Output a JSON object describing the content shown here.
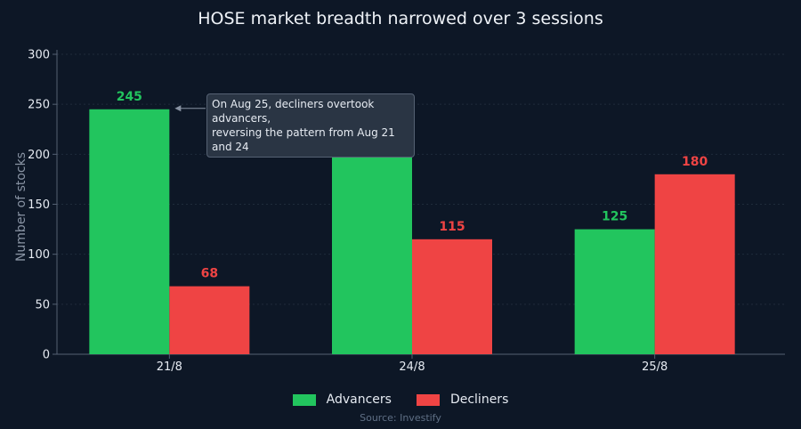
{
  "colors": {
    "background": "#0d1726",
    "advancers": "#22c55e",
    "decliners": "#ef4444",
    "grid": "#1f2b3b",
    "axis": "#556173",
    "text": "#e6ebf2",
    "muted": "#8893a3"
  },
  "chart_data": {
    "type": "bar",
    "title": "HOSE market breadth narrowed over 3 sessions",
    "xlabel": "",
    "ylabel": "Number of stocks",
    "ylim": [
      0,
      300
    ],
    "yticks": [
      0,
      50,
      100,
      150,
      200,
      250,
      300
    ],
    "categories": [
      "21/8",
      "24/8",
      "25/8"
    ],
    "series": [
      {
        "name": "Advancers",
        "values": [
          245,
          199,
          125
        ],
        "color": "#22c55e"
      },
      {
        "name": "Decliners",
        "values": [
          68,
          115,
          180
        ],
        "color": "#ef4444"
      }
    ],
    "grid": true,
    "legend_position": "bottom-center",
    "annotation": {
      "lines": [
        "On Aug 25, decliners overtook advancers,",
        "reversing the pattern from Aug 21 and 24"
      ],
      "points_to": {
        "category": "21/8",
        "series": "Advancers",
        "value": 245
      }
    },
    "source": "Source: Investify"
  }
}
